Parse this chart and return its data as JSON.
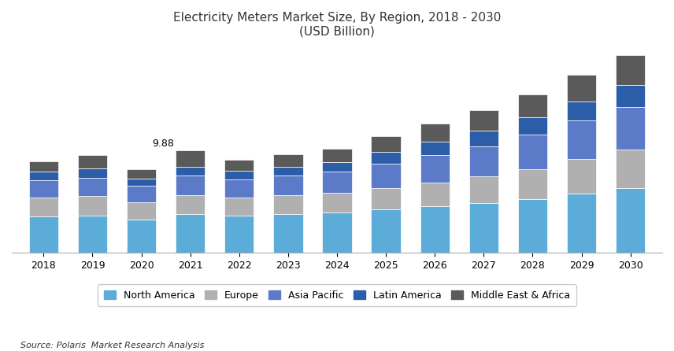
{
  "title_line1": "Electricity Meters Market Size, By Region, 2018 - 2030",
  "title_line2": "(USD Billion)",
  "source": "Source: Polaris  Market Research Analysis",
  "years": [
    2018,
    2019,
    2020,
    2021,
    2022,
    2023,
    2024,
    2025,
    2026,
    2027,
    2028,
    2029,
    2030
  ],
  "regions": [
    "North America",
    "Europe",
    "Asia Pacific",
    "Latin America",
    "Middle East & Africa"
  ],
  "colors": [
    "#5BACD8",
    "#B0B0B0",
    "#5B7BC8",
    "#2B5DA8",
    "#5A5A5A"
  ],
  "annotation_year": 2021,
  "annotation_value": "9.88",
  "data": {
    "North America": [
      3.5,
      3.6,
      3.2,
      3.75,
      3.55,
      3.7,
      3.85,
      4.15,
      4.45,
      4.8,
      5.2,
      5.7,
      6.2
    ],
    "Europe": [
      1.8,
      1.85,
      1.65,
      1.8,
      1.75,
      1.82,
      1.9,
      2.1,
      2.3,
      2.55,
      2.9,
      3.35,
      3.8
    ],
    "Asia Pacific": [
      1.7,
      1.8,
      1.6,
      1.88,
      1.8,
      1.9,
      2.05,
      2.35,
      2.65,
      2.95,
      3.3,
      3.7,
      4.1
    ],
    "Latin America": [
      0.8,
      0.9,
      0.7,
      0.85,
      0.8,
      0.88,
      0.98,
      1.15,
      1.32,
      1.5,
      1.68,
      1.88,
      2.1
    ],
    "Middle East & Africa": [
      1.05,
      1.25,
      0.9,
      1.6,
      1.1,
      1.18,
      1.3,
      1.5,
      1.75,
      2.0,
      2.25,
      2.55,
      2.88
    ]
  },
  "ylim": [
    0,
    20
  ],
  "bar_width": 0.6,
  "background_color": "#FFFFFF",
  "plot_background": "#FFFFFF",
  "border_color": "#CCCCCC",
  "legend_fontsize": 9,
  "title_fontsize": 11,
  "tick_fontsize": 9
}
